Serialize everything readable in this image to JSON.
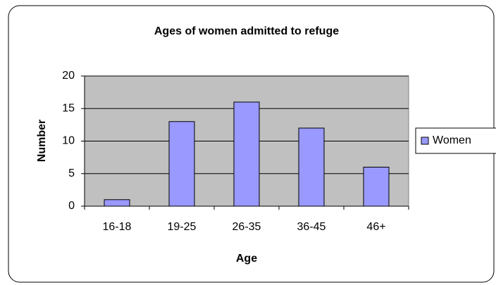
{
  "chart_data": {
    "type": "bar",
    "title": "Ages of women admitted to refuge",
    "x_label": "Age",
    "y_label": "Number",
    "categories": [
      "16-18",
      "19-25",
      "26-35",
      "36-45",
      "46+"
    ],
    "series": [
      {
        "name": "Women",
        "color": "#9999ff",
        "values": [
          1,
          13,
          16,
          12,
          6
        ]
      }
    ],
    "ylim": [
      0,
      20
    ],
    "yticks": [
      0,
      5,
      10,
      15,
      20
    ],
    "grid": true,
    "legend": "right",
    "plot_background": "#c0c0c0"
  }
}
